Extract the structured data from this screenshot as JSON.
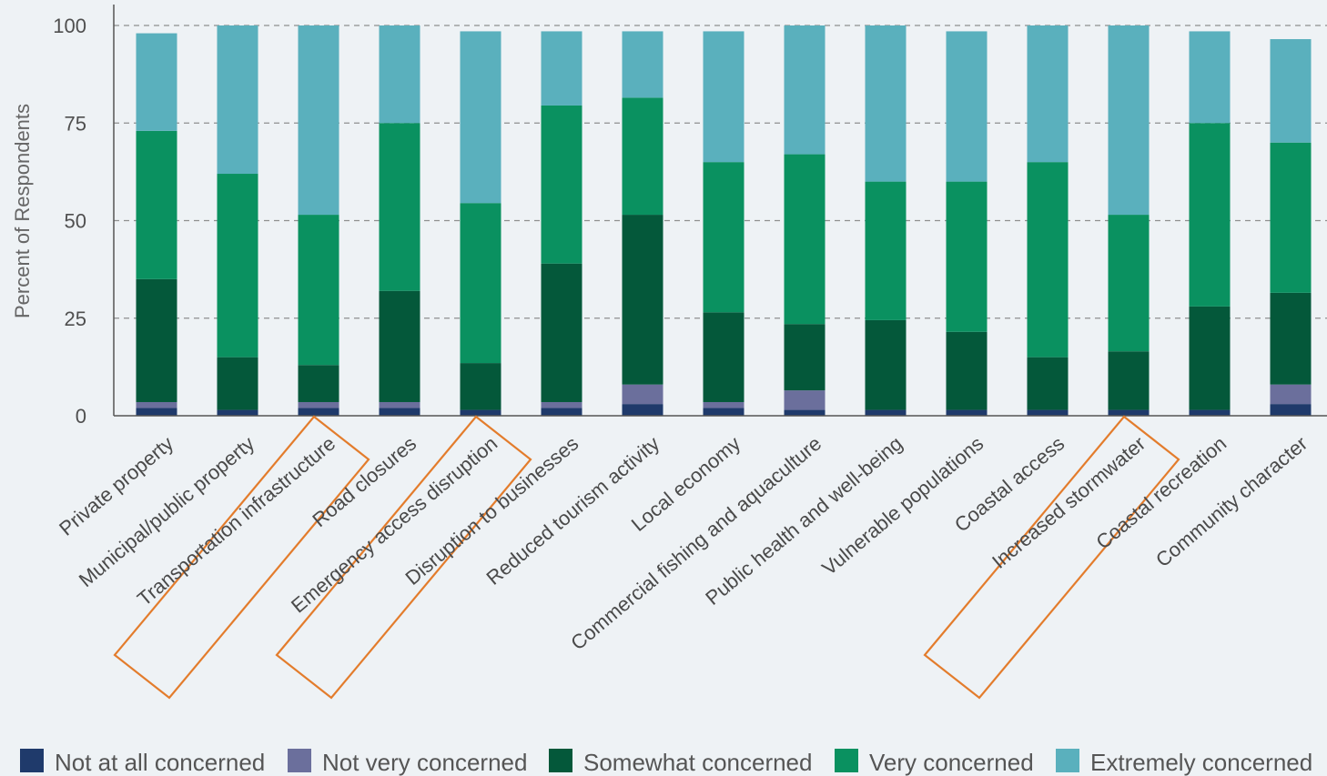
{
  "chart_data": {
    "type": "bar",
    "stacked": true,
    "ylabel": "Percent of Respondents",
    "ylim": [
      0,
      100
    ],
    "yticks": [
      0,
      25,
      50,
      75,
      100
    ],
    "grid": "horizontal dashed",
    "legend_position": "bottom",
    "categories": [
      "Private property",
      "Municipal/public property",
      "Transportation infrastructure",
      "Road closures",
      "Emergency access disruption",
      "Disruption to businesses",
      "Reduced tourism activity",
      "Local economy",
      "Commercial fishing and aquaculture",
      "Public health and well-being",
      "Vulnerable populations",
      "Coastal access",
      "Increased stormwater",
      "Coastal recreation",
      "Community character"
    ],
    "highlighted_categories": [
      "Transportation infrastructure",
      "Emergency access disruption",
      "Increased stormwater"
    ],
    "series": [
      {
        "name": "Not at all concerned",
        "color": "#1f3a6b",
        "values": [
          2,
          1.5,
          2,
          2,
          1.5,
          2,
          3,
          2,
          1.5,
          1.5,
          1.5,
          1.5,
          1.5,
          1.5,
          3
        ]
      },
      {
        "name": "Not very concerned",
        "color": "#6b6f9c",
        "values": [
          1.5,
          0,
          1.5,
          1.5,
          0,
          1.5,
          5,
          1.5,
          5,
          0,
          0,
          0,
          0,
          0,
          5
        ]
      },
      {
        "name": "Somewhat concerned",
        "color": "#04583a",
        "values": [
          31.5,
          13.5,
          9.5,
          28.5,
          12,
          35.5,
          43.5,
          23,
          17,
          23,
          20,
          13.5,
          15,
          26.5,
          23.5
        ]
      },
      {
        "name": "Very concerned",
        "color": "#0a9160",
        "values": [
          38,
          47,
          38.5,
          43,
          41,
          40.5,
          30,
          38.5,
          43.5,
          35.5,
          38.5,
          50,
          35,
          47,
          38.5
        ]
      },
      {
        "name": "Extremely concerned",
        "color": "#5ab0bd",
        "values": [
          25,
          38,
          48.5,
          25,
          44,
          19,
          17,
          33.5,
          33,
          40,
          38.5,
          35,
          48.5,
          23.5,
          26.5
        ]
      }
    ]
  }
}
